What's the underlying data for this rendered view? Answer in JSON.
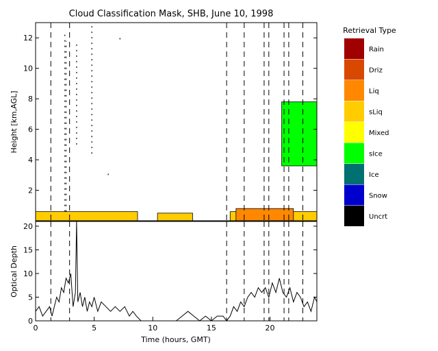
{
  "chart_data": [
    {
      "type": "heatmap",
      "title": "Cloud Classification Mask, SHB, June 10, 1998",
      "ylabel": "Height [km,AGL]",
      "xlim": [
        0,
        24
      ],
      "ylim": [
        0,
        13
      ],
      "yticks": [
        2,
        4,
        6,
        8,
        10,
        12
      ],
      "legend": {
        "title": "Retrieval Type",
        "placement": "right",
        "items": [
          {
            "label": "Rain",
            "color": "#a00000"
          },
          {
            "label": "Driz",
            "color": "#d84800"
          },
          {
            "label": "Liq",
            "color": "#ff8800"
          },
          {
            "label": "sLiq",
            "color": "#ffcc00"
          },
          {
            "label": "Mixed",
            "color": "#ffff00"
          },
          {
            "label": "sIce",
            "color": "#00ff00"
          },
          {
            "label": "Ice",
            "color": "#007070"
          },
          {
            "label": "Snow",
            "color": "#0000cc"
          },
          {
            "label": "Uncrt",
            "color": "#000000"
          }
        ]
      },
      "regions": [
        {
          "type": "sLiq",
          "x": [
            0.0,
            8.7
          ],
          "y": [
            0.0,
            0.6
          ]
        },
        {
          "type": "sLiq",
          "x": [
            10.4,
            13.4
          ],
          "y": [
            0.0,
            0.5
          ]
        },
        {
          "type": "sLiq",
          "x": [
            16.6,
            24.0
          ],
          "y": [
            0.0,
            0.6
          ]
        },
        {
          "type": "Liq",
          "x": [
            17.1,
            22.0
          ],
          "y": [
            0.0,
            0.8
          ]
        },
        {
          "type": "sIce",
          "x": [
            21.0,
            24.0
          ],
          "y": [
            3.6,
            7.8
          ]
        }
      ],
      "sparse_columns": [
        {
          "x": 2.5,
          "y": [
            0.6,
            12.4
          ]
        },
        {
          "x": 2.6,
          "y": [
            0.6,
            11.8
          ]
        },
        {
          "x": 3.5,
          "y": [
            5.0,
            11.8
          ]
        },
        {
          "x": 4.8,
          "y": [
            4.4,
            12.8
          ]
        },
        {
          "x": 6.2,
          "y": [
            3.0,
            3.1
          ]
        },
        {
          "x": 7.2,
          "y": [
            11.9,
            12.0
          ]
        }
      ],
      "time_markers": [
        1.3,
        2.9,
        16.3,
        17.8,
        19.5,
        19.9,
        21.2,
        21.6,
        22.8
      ]
    },
    {
      "type": "line",
      "xlabel": "Time (hours, GMT)",
      "ylabel": "Optical Depth",
      "xlim": [
        0,
        24
      ],
      "ylim": [
        0,
        21
      ],
      "xticks": [
        0,
        5,
        10,
        15,
        20
      ],
      "yticks": [
        0,
        5,
        10,
        15,
        20
      ],
      "series": [
        {
          "x": [
            0.0,
            0.3,
            0.6,
            0.9,
            1.2,
            1.4,
            1.6,
            1.8,
            2.0,
            2.2,
            2.4,
            2.6,
            2.8,
            3.0,
            3.2,
            3.4,
            3.5,
            3.6,
            3.8,
            4.0,
            4.2,
            4.4,
            4.6,
            4.8,
            5.0,
            5.3,
            5.6,
            6.0,
            6.4,
            6.8,
            7.2,
            7.6,
            8.0,
            8.3,
            8.6,
            9.0,
            9.5,
            10.0,
            10.5,
            11.0,
            11.5,
            12.0,
            12.5,
            13.0,
            13.5,
            14.0,
            14.5,
            15.0,
            15.5,
            16.0,
            16.3,
            16.6,
            16.9,
            17.2,
            17.5,
            17.8,
            18.1,
            18.4,
            18.7,
            19.0,
            19.3,
            19.6,
            19.9,
            20.2,
            20.5,
            20.8,
            21.1,
            21.4,
            21.7,
            22.0,
            22.3,
            22.6,
            22.9,
            23.2,
            23.5,
            23.8,
            24.0
          ],
          "y": [
            2,
            3,
            1,
            2,
            3,
            1,
            3,
            5,
            4,
            7,
            6,
            9,
            8,
            10,
            3,
            6,
            21,
            4,
            6,
            3,
            5,
            2,
            4,
            3,
            5,
            2,
            4,
            3,
            2,
            3,
            2,
            3,
            1,
            2,
            1,
            0,
            0,
            0,
            0,
            0,
            0,
            0,
            1,
            2,
            1,
            0,
            1,
            0,
            1,
            1,
            0,
            1,
            3,
            2,
            4,
            3,
            5,
            6,
            5,
            7,
            6,
            7,
            5,
            8,
            6,
            9,
            6,
            5,
            7,
            4,
            6,
            5,
            3,
            4,
            2,
            5,
            4
          ]
        }
      ],
      "time_markers": [
        1.3,
        2.9,
        16.3,
        17.8,
        19.5,
        19.9,
        21.2,
        21.6,
        22.8
      ]
    }
  ]
}
